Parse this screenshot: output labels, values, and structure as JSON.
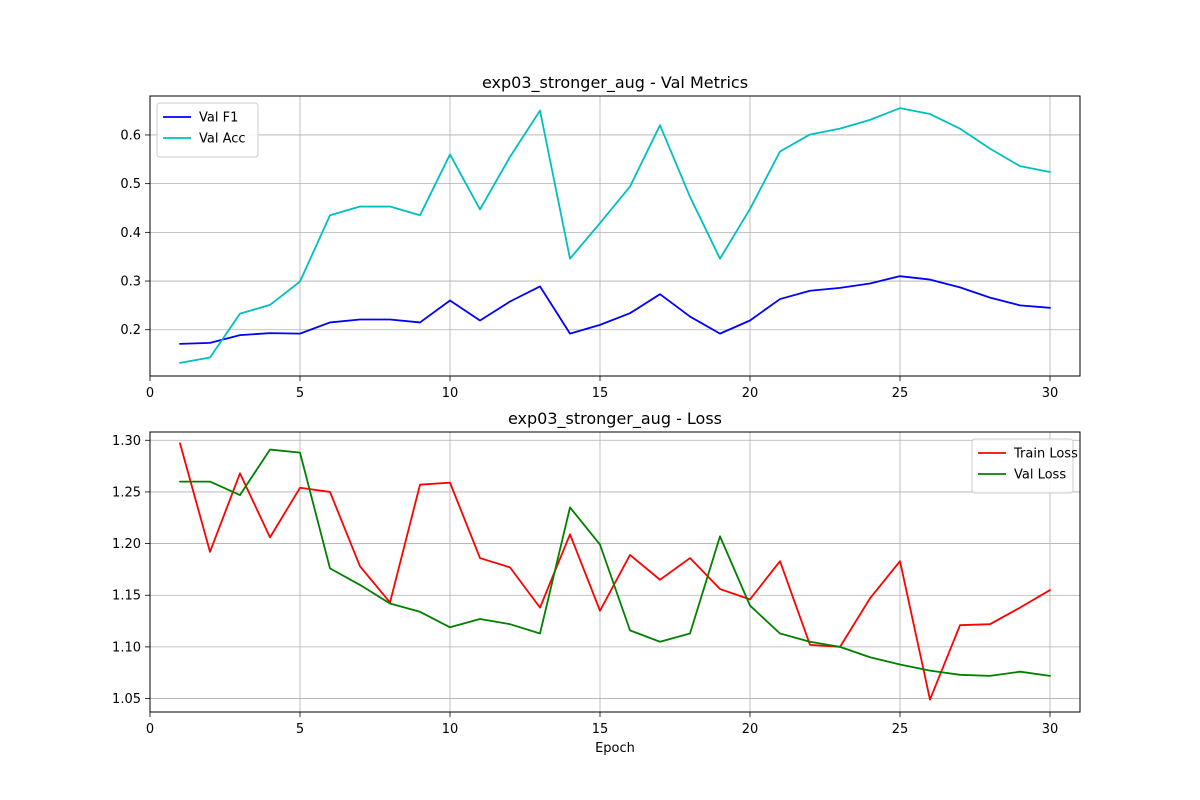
{
  "chart_data": [
    {
      "type": "line",
      "title": "exp03_stronger_aug - Val Metrics",
      "xlabel": "",
      "ylabel": "",
      "xlim": [
        0,
        31
      ],
      "ylim": [
        0.105,
        0.68
      ],
      "xticks": [
        0,
        5,
        10,
        15,
        20,
        25,
        30
      ],
      "yticks": [
        0.2,
        0.3,
        0.4,
        0.5,
        0.6
      ],
      "ytick_labels": [
        "0.2",
        "0.3",
        "0.4",
        "0.5",
        "0.6"
      ],
      "grid": true,
      "legend_position": "top-left",
      "x": [
        1,
        2,
        3,
        4,
        5,
        6,
        7,
        8,
        9,
        10,
        11,
        12,
        13,
        14,
        15,
        16,
        17,
        18,
        19,
        20,
        21,
        22,
        23,
        24,
        25,
        26,
        27,
        28,
        29,
        30
      ],
      "series": [
        {
          "name": "Val F1",
          "color": "#0000ff",
          "values": [
            0.171,
            0.173,
            0.189,
            0.193,
            0.192,
            0.215,
            0.221,
            0.221,
            0.215,
            0.26,
            0.219,
            0.258,
            0.289,
            0.192,
            0.21,
            0.234,
            0.273,
            0.227,
            0.192,
            0.219,
            0.263,
            0.28,
            0.286,
            0.295,
            0.31,
            0.303,
            0.287,
            0.266,
            0.25,
            0.245
          ]
        },
        {
          "name": "Val Acc",
          "color": "#00bfbf",
          "values": [
            0.132,
            0.143,
            0.233,
            0.251,
            0.299,
            0.435,
            0.453,
            0.453,
            0.435,
            0.56,
            0.447,
            0.555,
            0.65,
            0.346,
            0.419,
            0.494,
            0.62,
            0.473,
            0.346,
            0.448,
            0.566,
            0.601,
            0.613,
            0.631,
            0.655,
            0.643,
            0.613,
            0.572,
            0.536,
            0.524
          ]
        }
      ]
    },
    {
      "type": "line",
      "title": "exp03_stronger_aug - Loss",
      "xlabel": "Epoch",
      "ylabel": "",
      "xlim": [
        0,
        31
      ],
      "ylim": [
        1.037,
        1.308
      ],
      "xticks": [
        0,
        5,
        10,
        15,
        20,
        25,
        30
      ],
      "yticks": [
        1.05,
        1.1,
        1.15,
        1.2,
        1.25,
        1.3
      ],
      "ytick_labels": [
        "1.05",
        "1.10",
        "1.15",
        "1.20",
        "1.25",
        "1.30"
      ],
      "grid": true,
      "legend_position": "top-right",
      "x": [
        1,
        2,
        3,
        4,
        5,
        6,
        7,
        8,
        9,
        10,
        11,
        12,
        13,
        14,
        15,
        16,
        17,
        18,
        19,
        20,
        21,
        22,
        23,
        24,
        25,
        26,
        27,
        28,
        29,
        30
      ],
      "series": [
        {
          "name": "Train Loss",
          "color": "#ff0000",
          "values": [
            1.297,
            1.192,
            1.268,
            1.206,
            1.254,
            1.25,
            1.178,
            1.143,
            1.257,
            1.259,
            1.186,
            1.177,
            1.138,
            1.209,
            1.135,
            1.189,
            1.165,
            1.186,
            1.156,
            1.146,
            1.183,
            1.102,
            1.1,
            1.147,
            1.183,
            1.049,
            1.121,
            1.122,
            1.138,
            1.155
          ]
        },
        {
          "name": "Val Loss",
          "color": "#008000",
          "values": [
            1.26,
            1.26,
            1.247,
            1.291,
            1.288,
            1.176,
            1.16,
            1.142,
            1.134,
            1.119,
            1.127,
            1.122,
            1.113,
            1.235,
            1.199,
            1.116,
            1.105,
            1.113,
            1.207,
            1.14,
            1.113,
            1.105,
            1.1,
            1.09,
            1.083,
            1.077,
            1.073,
            1.072,
            1.076,
            1.072
          ]
        }
      ]
    }
  ]
}
